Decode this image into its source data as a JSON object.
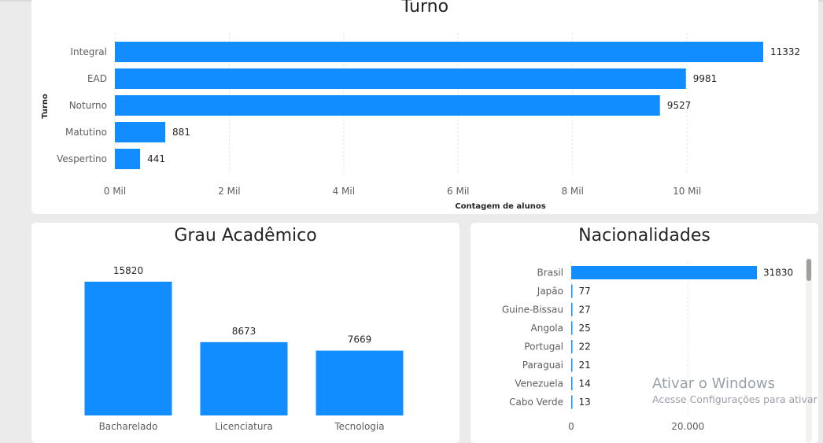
{
  "chart_data": [
    {
      "type": "bar",
      "orientation": "horizontal",
      "title": "Turno",
      "xlabel": "Contagem de alunos",
      "ylabel": "Turno",
      "categories": [
        "Integral",
        "EAD",
        "Noturno",
        "Matutino",
        "Vespertino"
      ],
      "values": [
        11332,
        9981,
        9527,
        881,
        441
      ],
      "xticks": [
        "0 Mil",
        "2 Mil",
        "4 Mil",
        "6 Mil",
        "8 Mil",
        "10 Mil"
      ],
      "xtick_values": [
        0,
        2000,
        4000,
        6000,
        8000,
        10000
      ],
      "xlim": [
        0,
        11332
      ],
      "grid": true,
      "color": "#118dff"
    },
    {
      "type": "bar",
      "orientation": "vertical",
      "title": "Grau Acadêmico",
      "categories": [
        "Bacharelado",
        "Licenciatura",
        "Tecnologia"
      ],
      "values": [
        15820,
        8673,
        7669
      ],
      "ylim": [
        0,
        15820
      ],
      "color": "#118dff"
    },
    {
      "type": "bar",
      "orientation": "horizontal",
      "title": "Nacionalidades",
      "categories": [
        "Brasil",
        "Japão",
        "Guine-Bissau",
        "Angola",
        "Portugal",
        "Paraguai",
        "Venezuela",
        "Cabo Verde"
      ],
      "values": [
        31830,
        77,
        27,
        25,
        22,
        21,
        14,
        13
      ],
      "xticks": [
        "0",
        "20.000"
      ],
      "xtick_values": [
        0,
        20000
      ],
      "xlim": [
        0,
        31830
      ],
      "grid": true,
      "color": "#118dff"
    }
  ],
  "watermark": {
    "line1": "Ativar o Windows",
    "line2": "Acesse Configurações para ativar"
  }
}
